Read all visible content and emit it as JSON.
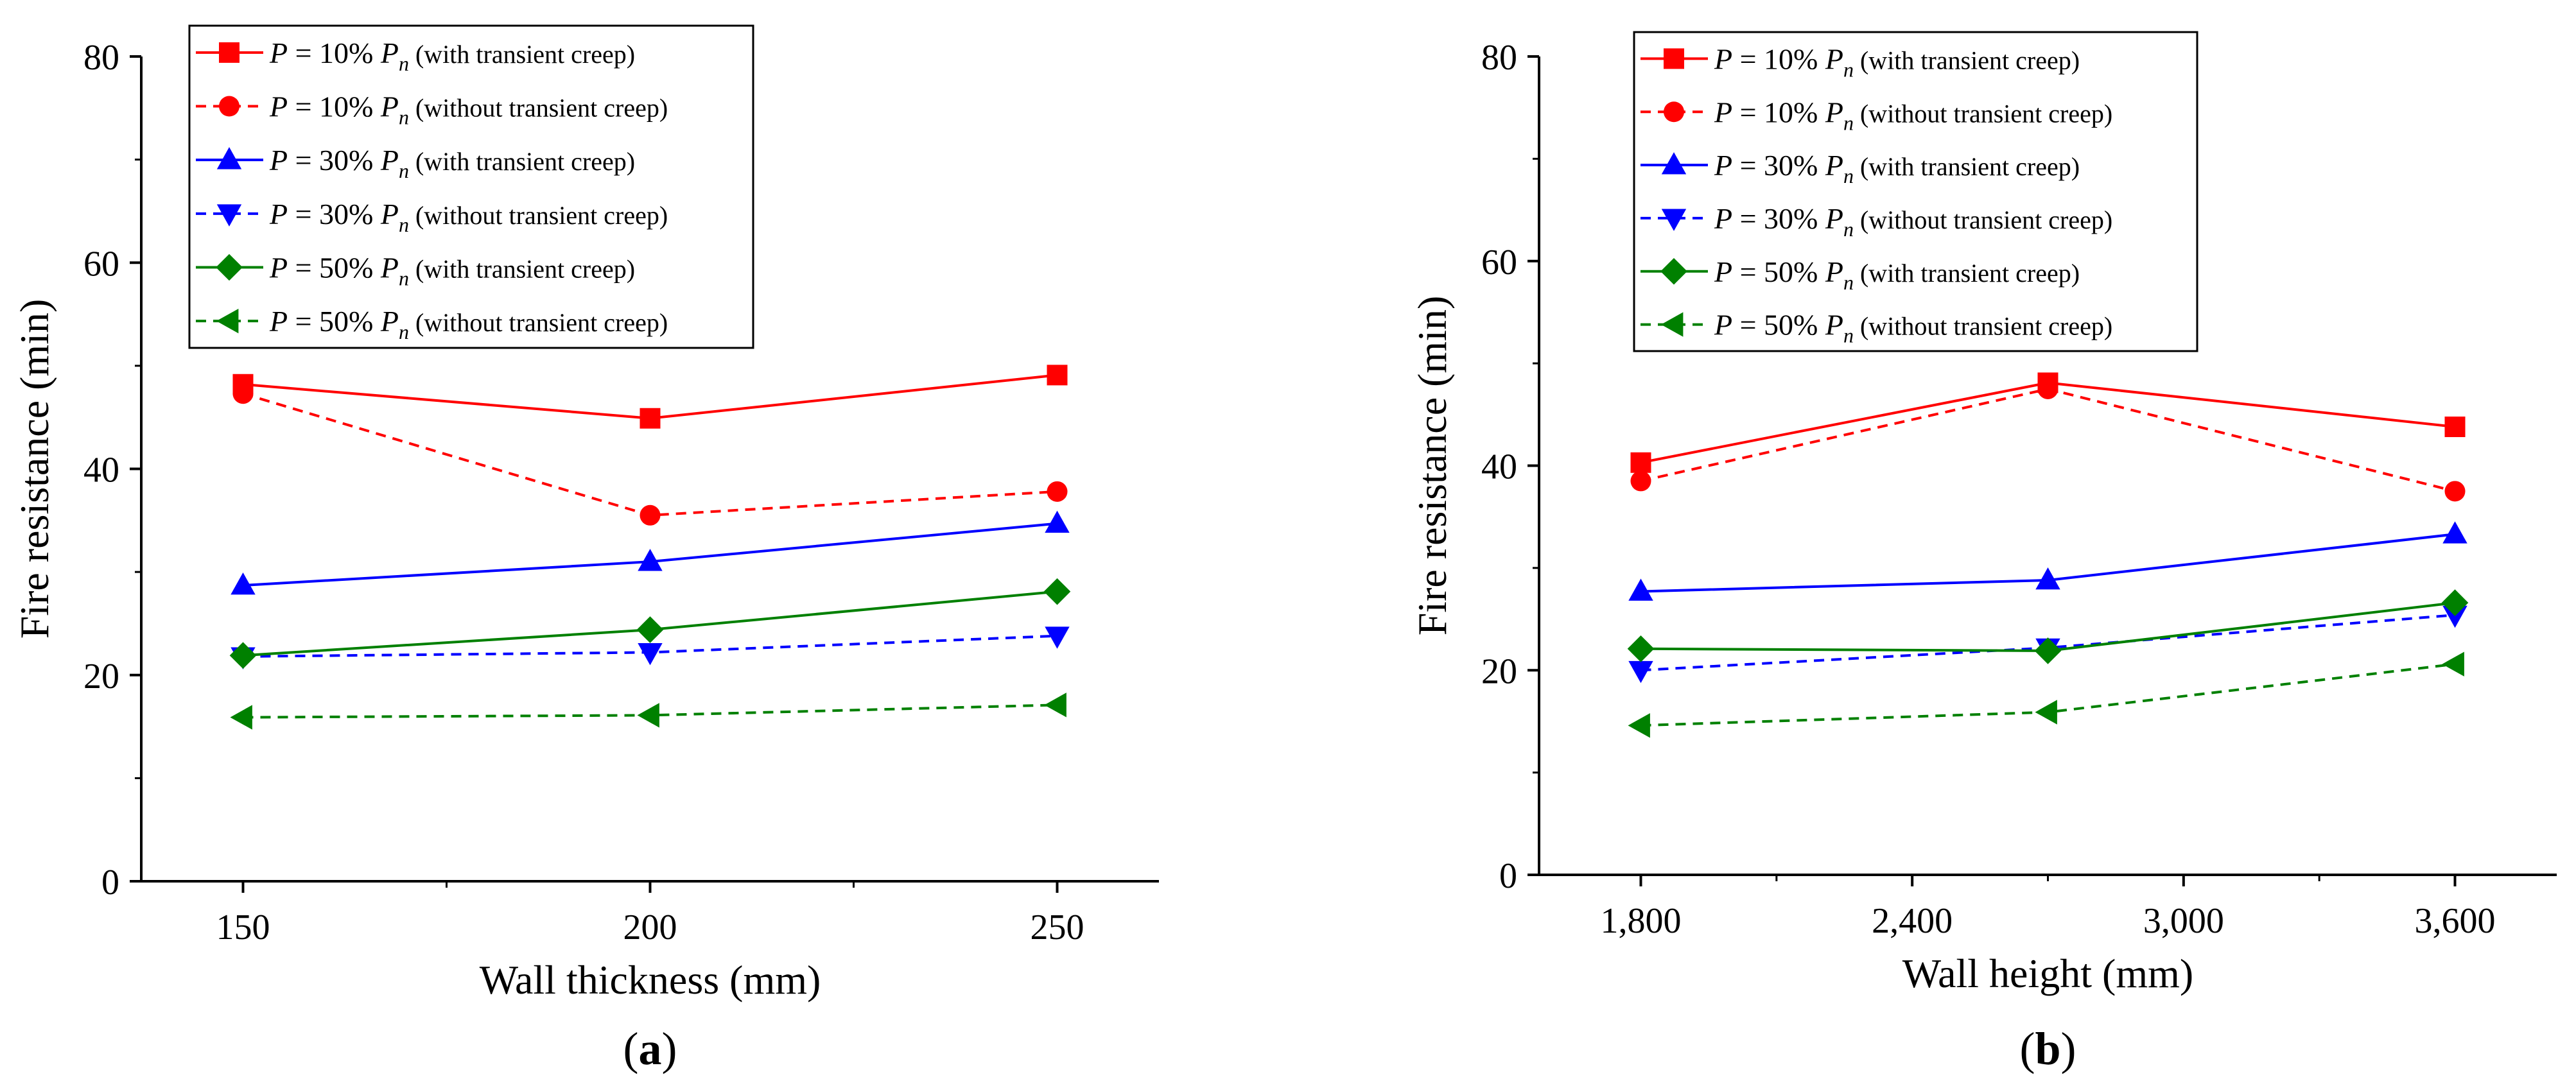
{
  "chart_data": [
    {
      "type": "line",
      "panel_label": "a",
      "xlabel": "Wall thickness (mm)",
      "ylabel": "Fire resistance (min)",
      "x": [
        150,
        200,
        250
      ],
      "x_tick_labels": [
        "150",
        "200",
        "250"
      ],
      "xlim": [
        137.5,
        262.5
      ],
      "ylim": [
        0,
        80
      ],
      "y_ticks": [
        0,
        20,
        40,
        60,
        80
      ],
      "y_tick_labels": [
        "0",
        "20",
        "40",
        "60",
        "80"
      ],
      "legend_position": "top-right",
      "series": [
        {
          "load": "10%",
          "note": "(with transient creep)",
          "values": [
            48.2,
            44.9,
            49.1
          ],
          "color": "#ff0000",
          "marker": "square",
          "dashed": false
        },
        {
          "load": "10%",
          "note": "(without transient creep)",
          "values": [
            47.3,
            35.5,
            37.8
          ],
          "color": "#ff0000",
          "marker": "circle",
          "dashed": true
        },
        {
          "load": "30%",
          "note": "(with transient creep)",
          "values": [
            28.7,
            31.0,
            34.7
          ],
          "color": "#0000ff",
          "marker": "triangle-up",
          "dashed": false
        },
        {
          "load": "30%",
          "note": "(without transient creep)",
          "values": [
            21.8,
            22.2,
            23.8
          ],
          "color": "#0000ff",
          "marker": "triangle-down",
          "dashed": true
        },
        {
          "load": "50%",
          "note": "(with transient creep)",
          "values": [
            21.9,
            24.4,
            28.1
          ],
          "color": "#008000",
          "marker": "diamond",
          "dashed": false
        },
        {
          "load": "50%",
          "note": "(without transient creep)",
          "values": [
            15.9,
            16.1,
            17.1
          ],
          "color": "#008000",
          "marker": "triangle-left",
          "dashed": true
        }
      ]
    },
    {
      "type": "line",
      "panel_label": "b",
      "xlabel": "Wall height (mm)",
      "ylabel": "Fire resistance (min)",
      "x": [
        1800,
        2700,
        3600
      ],
      "x_ticks": [
        1800,
        2400,
        3000,
        3600
      ],
      "x_tick_labels": [
        "1,800",
        "2,400",
        "3,000",
        "3,600"
      ],
      "xlim": [
        1575,
        3825
      ],
      "ylim": [
        0,
        80
      ],
      "y_ticks": [
        0,
        20,
        40,
        60,
        80
      ],
      "y_tick_labels": [
        "0",
        "20",
        "40",
        "60",
        "80"
      ],
      "legend_position": "top-left",
      "series": [
        {
          "load": "10%",
          "note": "(with transient creep)",
          "values": [
            40.3,
            48.1,
            43.8
          ],
          "color": "#ff0000",
          "marker": "square",
          "dashed": false
        },
        {
          "load": "10%",
          "note": "(without transient creep)",
          "values": [
            38.5,
            47.5,
            37.5
          ],
          "color": "#ff0000",
          "marker": "circle",
          "dashed": true
        },
        {
          "load": "30%",
          "note": "(with transient creep)",
          "values": [
            27.7,
            28.8,
            33.3
          ],
          "color": "#0000ff",
          "marker": "triangle-up",
          "dashed": false
        },
        {
          "load": "30%",
          "note": "(without transient creep)",
          "values": [
            20.0,
            22.2,
            25.4
          ],
          "color": "#0000ff",
          "marker": "triangle-down",
          "dashed": true
        },
        {
          "load": "50%",
          "note": "(with transient creep)",
          "values": [
            22.1,
            21.9,
            26.6
          ],
          "color": "#008000",
          "marker": "diamond",
          "dashed": false
        },
        {
          "load": "50%",
          "note": "(without transient creep)",
          "values": [
            14.6,
            15.9,
            20.6
          ],
          "color": "#008000",
          "marker": "triangle-left",
          "dashed": true
        }
      ]
    }
  ]
}
